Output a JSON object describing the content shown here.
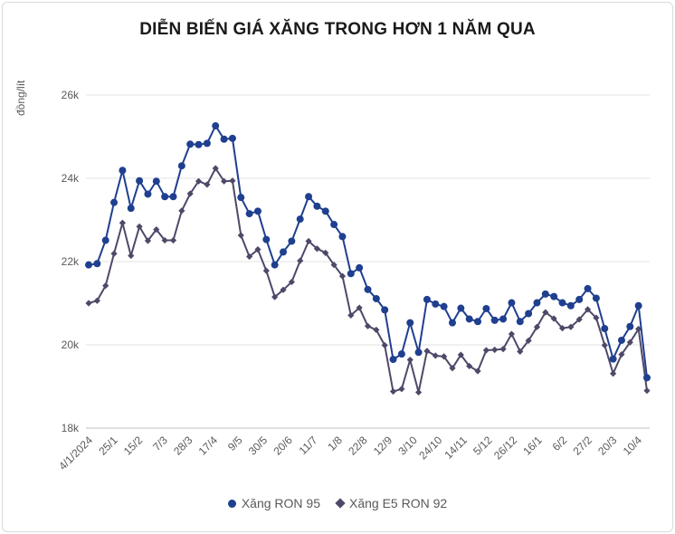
{
  "chart_data": {
    "type": "line",
    "title": "DIỄN BIẾN GIÁ XĂNG TRONG HƠN 1 NĂM QUA",
    "ylabel": "đồng/lít",
    "xlabel": "",
    "ylim": [
      18000,
      26000
    ],
    "yticks": [
      18000,
      20000,
      22000,
      24000,
      26000
    ],
    "ytick_labels": [
      "18k",
      "20k",
      "22k",
      "24k",
      "26k"
    ],
    "xtick_labels": [
      "4/1/2024",
      "25/1",
      "15/2",
      "7/3",
      "28/3",
      "17/4",
      "9/5",
      "30/5",
      "20/6",
      "11/7",
      "1/8",
      "22/8",
      "12/9",
      "3/10",
      "24/10",
      "14/11",
      "5/12",
      "26/12",
      "16/1",
      "6/2",
      "27/2",
      "20/3",
      "10/4"
    ],
    "grid": "horizontal",
    "legend_position": "bottom",
    "series": [
      {
        "name": "Xăng RON 95",
        "color": "#1f3f8f",
        "marker": "circle",
        "values": [
          21920,
          21950,
          22510,
          23420,
          24190,
          23280,
          23940,
          23620,
          23930,
          23560,
          23560,
          24300,
          24820,
          24810,
          24840,
          25260,
          24940,
          24960,
          23540,
          23150,
          23210,
          22530,
          21920,
          22230,
          22490,
          23020,
          23560,
          23330,
          23210,
          22890,
          22600,
          21710,
          21850,
          21330,
          21110,
          20840,
          19650,
          19780,
          20530,
          19820,
          21090,
          20980,
          20920,
          20530,
          20880,
          20620,
          20560,
          20870,
          20590,
          20620,
          21010,
          20560,
          20750,
          21010,
          21220,
          21160,
          21010,
          20940,
          21090,
          21350,
          21120,
          20390,
          19660,
          20110,
          20440,
          20940,
          19210
        ]
      },
      {
        "name": "Xăng E5 RON 92",
        "color": "#4f4868",
        "marker": "diamond",
        "values": [
          21000,
          21060,
          21420,
          22190,
          22930,
          22140,
          22840,
          22500,
          22770,
          22510,
          22510,
          23220,
          23630,
          23930,
          23850,
          24240,
          23930,
          23940,
          22630,
          22120,
          22290,
          21780,
          21150,
          21320,
          21510,
          22020,
          22490,
          22310,
          22210,
          21920,
          21650,
          20710,
          20890,
          20450,
          20360,
          19990,
          18880,
          18940,
          19640,
          18860,
          19850,
          19740,
          19720,
          19440,
          19760,
          19490,
          19370,
          19870,
          19880,
          19900,
          20260,
          19840,
          20100,
          20430,
          20780,
          20630,
          20400,
          20430,
          20610,
          20850,
          20650,
          19990,
          19310,
          19770,
          20060,
          20380,
          18900
        ]
      }
    ]
  }
}
